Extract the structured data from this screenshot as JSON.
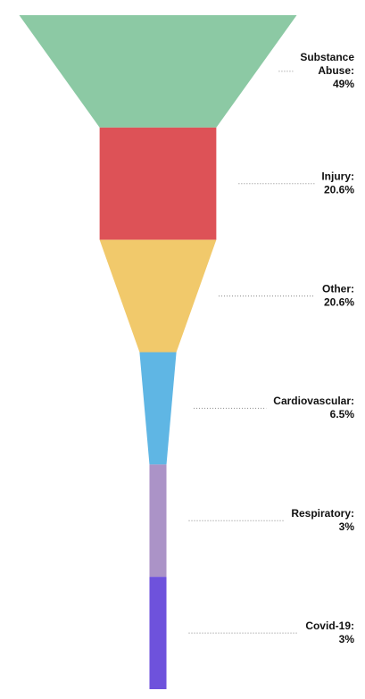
{
  "chart_data": {
    "type": "funnel",
    "categories": [
      "Substance Abuse:",
      "Injury:",
      "Other:",
      "Cardiovascular:",
      "Respiratory:",
      "Covid-19:"
    ],
    "values": [
      49,
      20.6,
      20.6,
      6.5,
      3,
      3
    ],
    "value_labels": [
      "49%",
      "20.6%",
      "20.6%",
      "6.5%",
      "3%",
      "3%"
    ],
    "colors": [
      "#8cc9a4",
      "#dd5257",
      "#f1c96b",
      "#5fb6e4",
      "#ab93c7",
      "#6e52dc"
    ]
  }
}
